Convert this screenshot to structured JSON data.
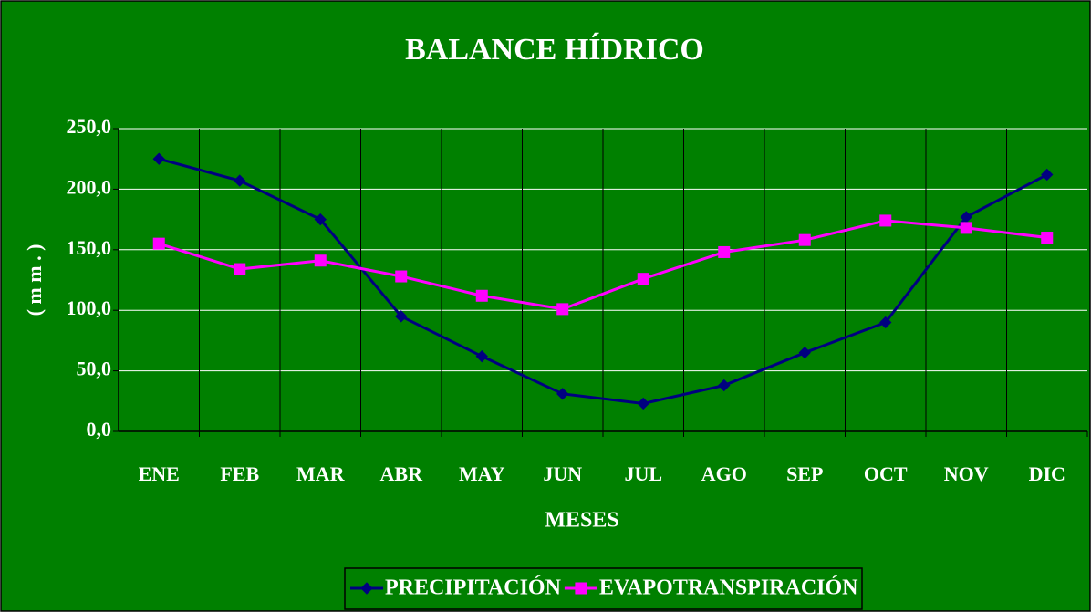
{
  "chart_data": {
    "type": "line",
    "title": "BALANCE HÍDRICO",
    "x_label": "MESES",
    "y_label": "( m m . )",
    "categories": [
      "ENE",
      "FEB",
      "MAR",
      "ABR",
      "MAY",
      "JUN",
      "JUL",
      "AGO",
      "SEP",
      "OCT",
      "NOV",
      "DIC"
    ],
    "series": [
      {
        "name": "PRECIPITACIÓN",
        "color": "#000080",
        "marker": "diamond",
        "values": [
          225,
          207,
          175,
          95,
          62,
          31,
          23,
          38,
          65,
          90,
          177,
          212
        ]
      },
      {
        "name": "EVAPOTRANSPIRACIÓN",
        "color": "#ff00ff",
        "marker": "square",
        "values": [
          155,
          134,
          141,
          128,
          112,
          101,
          126,
          148,
          158,
          174,
          168,
          160
        ]
      }
    ],
    "ylim": [
      0,
      250
    ],
    "yticks": [
      {
        "value": 0,
        "label": "0,0"
      },
      {
        "value": 50,
        "label": "50,0"
      },
      {
        "value": 100,
        "label": "100,0"
      },
      {
        "value": 150,
        "label": "150,0"
      },
      {
        "value": 200,
        "label": "200,0"
      },
      {
        "value": 250,
        "label": "250,0"
      }
    ],
    "grid": true,
    "legend": "bottom",
    "background": "#008000"
  }
}
